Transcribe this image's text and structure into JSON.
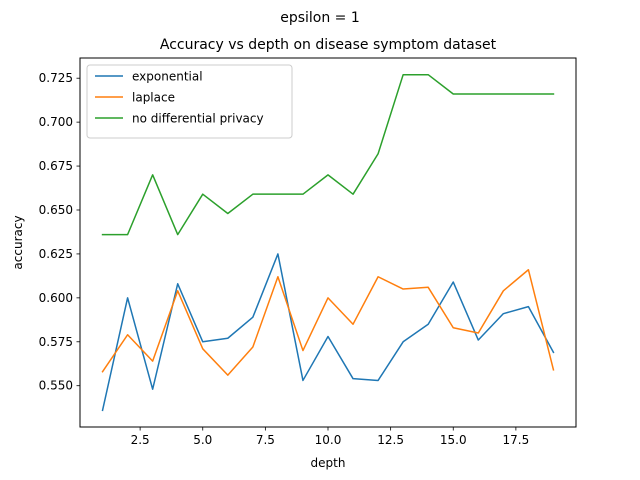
{
  "chart_data": {
    "type": "line",
    "suptitle": "epsilon = 1",
    "title": "Accuracy vs depth on disease symptom dataset",
    "xlabel": "depth",
    "ylabel": "accuracy",
    "xlim": [
      0.1,
      19.9
    ],
    "ylim": [
      0.5265,
      0.7365
    ],
    "xticks": [
      2.5,
      5.0,
      7.5,
      10.0,
      12.5,
      15.0,
      17.5
    ],
    "xtick_labels": [
      "2.5",
      "5.0",
      "7.5",
      "10.0",
      "12.5",
      "15.0",
      "17.5"
    ],
    "yticks": [
      0.55,
      0.575,
      0.6,
      0.625,
      0.65,
      0.675,
      0.7,
      0.725
    ],
    "ytick_labels": [
      "0.550",
      "0.575",
      "0.600",
      "0.625",
      "0.650",
      "0.675",
      "0.700",
      "0.725"
    ],
    "grid": false,
    "legend_position": "top-left",
    "x": [
      1,
      2,
      3,
      4,
      5,
      6,
      7,
      8,
      9,
      10,
      11,
      12,
      13,
      14,
      15,
      16,
      17,
      18,
      19
    ],
    "series": [
      {
        "name": "exponential",
        "color": "#1f77b4",
        "values": [
          0.536,
          0.6,
          0.548,
          0.608,
          0.575,
          0.577,
          0.589,
          0.625,
          0.553,
          0.578,
          0.554,
          0.553,
          0.575,
          0.585,
          0.609,
          0.576,
          0.591,
          0.595,
          0.569
        ]
      },
      {
        "name": "laplace",
        "color": "#ff7f0e",
        "values": [
          0.558,
          0.579,
          0.564,
          0.604,
          0.571,
          0.556,
          0.572,
          0.612,
          0.57,
          0.6,
          0.585,
          0.612,
          0.605,
          0.606,
          0.583,
          0.58,
          0.604,
          0.616,
          0.559
        ]
      },
      {
        "name": "no differential privacy",
        "color": "#2ca02c",
        "values": [
          0.636,
          0.636,
          0.67,
          0.636,
          0.659,
          0.648,
          0.659,
          0.659,
          0.659,
          0.67,
          0.659,
          0.682,
          0.727,
          0.727,
          0.716,
          0.716,
          0.716,
          0.716,
          0.716
        ]
      }
    ]
  }
}
